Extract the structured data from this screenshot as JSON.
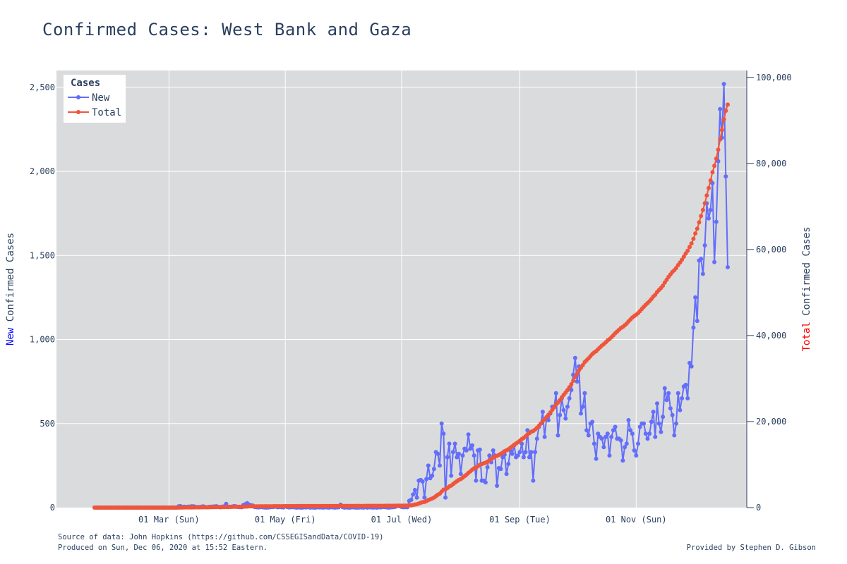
{
  "page": {
    "title": "Confirmed Cases: West Bank and Gaza",
    "footer_source": "Source of data: John Hopkins (https://github.com/CSSEGISandData/COVID-19)",
    "footer_produced": "Produced on Sun, Dec 06, 2020 at 15:52 Eastern.",
    "footer_credit": "Provided by Stephen D. Gibson"
  },
  "chart_data": {
    "type": "line",
    "title": "Confirmed Cases: West Bank and Gaza",
    "grid": true,
    "legend": {
      "title": "Cases",
      "placement": "top-left"
    },
    "colors": {
      "new": "#636efa",
      "total": "#ef553b",
      "plot_bg": "#dadbdd",
      "grid": "#ffffff",
      "text": "#2a3f5f"
    },
    "x_start": "2020-01-22",
    "xlim": [
      "2020-01-02",
      "2020-12-29"
    ],
    "x_ticks": [
      {
        "date": "2020-03-01",
        "label": "01 Mar (Sun)"
      },
      {
        "date": "2020-05-01",
        "label": "01 May (Fri)"
      },
      {
        "date": "2020-07-01",
        "label": "01 Jul (Wed)"
      },
      {
        "date": "2020-09-01",
        "label": "01 Sep (Tue)"
      },
      {
        "date": "2020-11-01",
        "label": "01 Nov (Sun)"
      }
    ],
    "y_left": {
      "label_prefix": "New",
      "label_rest": " Confirmed Cases",
      "ylim": [
        0,
        2600
      ],
      "ticks": [
        0,
        500,
        1000,
        1500,
        2000,
        2500
      ],
      "tick_labels": [
        "0",
        "500",
        "1,000",
        "1,500",
        "2,000",
        "2,500"
      ]
    },
    "y_right": {
      "label_prefix": "Total",
      "label_rest": " Confirmed Cases",
      "ylim": [
        0,
        101600
      ],
      "ticks": [
        0,
        20000,
        40000,
        60000,
        80000,
        100000
      ],
      "tick_labels": [
        "0",
        "20,000",
        "40,000",
        "60,000",
        "80,000",
        "100,000"
      ]
    },
    "series": [
      {
        "name": "New",
        "axis": "left",
        "values": [
          0,
          0,
          0,
          0,
          0,
          0,
          0,
          0,
          0,
          0,
          0,
          0,
          0,
          0,
          0,
          0,
          0,
          0,
          0,
          0,
          0,
          0,
          0,
          0,
          0,
          0,
          0,
          0,
          0,
          0,
          0,
          0,
          0,
          0,
          0,
          0,
          0,
          0,
          0,
          0,
          0,
          0,
          0,
          0,
          7,
          9,
          4,
          5,
          4,
          5,
          6,
          8,
          7,
          4,
          3,
          3,
          5,
          7,
          3,
          2,
          4,
          5,
          6,
          7,
          8,
          4,
          2,
          6,
          7,
          22,
          3,
          5,
          6,
          9,
          8,
          4,
          3,
          2,
          15,
          20,
          26,
          18,
          14,
          12,
          3,
          2,
          1,
          3,
          2,
          1,
          0,
          1,
          2,
          3,
          4,
          6,
          2,
          3,
          2,
          1,
          8,
          3,
          1,
          2,
          3,
          1,
          0,
          1,
          0,
          0,
          2,
          1,
          3,
          0,
          1,
          0,
          0,
          2,
          1,
          1,
          0,
          2,
          1,
          0,
          3,
          1,
          0,
          1,
          2,
          17,
          3,
          0,
          1,
          0,
          0,
          2,
          1,
          0,
          0,
          1,
          1,
          0,
          3,
          0,
          2,
          1,
          0,
          1,
          0,
          2,
          1,
          4,
          3,
          2,
          0,
          1,
          2,
          3,
          6,
          10,
          8,
          4,
          2,
          3,
          2,
          40,
          46,
          78,
          105,
          60,
          160,
          165,
          155,
          60,
          170,
          250,
          175,
          190,
          230,
          330,
          320,
          250,
          500,
          440,
          60,
          300,
          380,
          190,
          330,
          380,
          300,
          320,
          200,
          310,
          350,
          340,
          435,
          350,
          370,
          310,
          160,
          340,
          345,
          160,
          160,
          150,
          240,
          310,
          270,
          340,
          310,
          130,
          235,
          230,
          300,
          315,
          200,
          260,
          340,
          320,
          370,
          300,
          310,
          330,
          380,
          300,
          330,
          460,
          300,
          330,
          160,
          330,
          410,
          480,
          500,
          570,
          420,
          530,
          520,
          560,
          600,
          600,
          680,
          430,
          550,
          650,
          580,
          530,
          600,
          650,
          700,
          790,
          890,
          750,
          840,
          560,
          600,
          680,
          460,
          430,
          500,
          510,
          380,
          290,
          440,
          420,
          410,
          360,
          420,
          440,
          310,
          420,
          460,
          480,
          410,
          410,
          400,
          280,
          360,
          380,
          520,
          460,
          440,
          340,
          310,
          380,
          480,
          500,
          500,
          440,
          410,
          440,
          510,
          570,
          420,
          620,
          500,
          450,
          540,
          710,
          640,
          680,
          590,
          550,
          430,
          500,
          680,
          580,
          650,
          720,
          730,
          650,
          860,
          840,
          1070,
          1250,
          1110,
          1470,
          1480,
          1390,
          1560,
          1810,
          1720,
          1770,
          1930,
          1460,
          1700,
          2060,
          2370,
          2200,
          2520,
          1970,
          1430
        ]
      },
      {
        "name": "Total",
        "axis": "right",
        "values": [
          0,
          0,
          0,
          0,
          0,
          0,
          0,
          0,
          0,
          0,
          0,
          0,
          0,
          0,
          0,
          0,
          0,
          0,
          0,
          0,
          0,
          0,
          0,
          0,
          0,
          0,
          0,
          0,
          0,
          0,
          0,
          0,
          0,
          0,
          0,
          0,
          0,
          0,
          0,
          0,
          0,
          0,
          0,
          0,
          7,
          16,
          20,
          25,
          29,
          34,
          40,
          48,
          55,
          59,
          62,
          65,
          70,
          77,
          80,
          82,
          86,
          91,
          97,
          104,
          112,
          116,
          118,
          124,
          131,
          153,
          156,
          161,
          167,
          176,
          184,
          188,
          191,
          193,
          208,
          228,
          254,
          272,
          286,
          298,
          301,
          303,
          304,
          307,
          309,
          310,
          310,
          311,
          313,
          316,
          320,
          326,
          328,
          331,
          333,
          334,
          342,
          345,
          346,
          348,
          351,
          352,
          352,
          353,
          353,
          353,
          355,
          356,
          359,
          359,
          360,
          360,
          360,
          362,
          363,
          364,
          364,
          366,
          367,
          367,
          370,
          371,
          371,
          372,
          374,
          391,
          394,
          394,
          395,
          395,
          395,
          397,
          398,
          398,
          398,
          399,
          400,
          400,
          403,
          403,
          405,
          406,
          406,
          407,
          407,
          409,
          410,
          414,
          417,
          419,
          419,
          420,
          422,
          425,
          431,
          441,
          449,
          453,
          455,
          458,
          460,
          500,
          546,
          624,
          729,
          789,
          949,
          1114,
          1269,
          1329,
          1499,
          1749,
          1924,
          2114,
          2344,
          2674,
          2994,
          3244,
          3744,
          4184,
          4244,
          4544,
          4924,
          5114,
          5444,
          5824,
          6124,
          6444,
          6644,
          6954,
          7304,
          7644,
          8079,
          8429,
          8799,
          9109,
          9269,
          9609,
          9954,
          10114,
          10274,
          10424,
          10664,
          10974,
          11244,
          11584,
          11894,
          12024,
          12259,
          12489,
          12789,
          13104,
          13304,
          13564,
          13904,
          14224,
          14594,
          14894,
          15204,
          15534,
          15914,
          16214,
          16544,
          17004,
          17304,
          17634,
          17794,
          18124,
          18534,
          19014,
          19514,
          20084,
          20504,
          21034,
          21554,
          22114,
          22714,
          23314,
          23994,
          24424,
          24974,
          25624,
          26204,
          26734,
          27334,
          27984,
          28684,
          29474,
          30364,
          31114,
          31954,
          32514,
          33114,
          33794,
          34254,
          34684,
          35184,
          35694,
          36074,
          36364,
          36804,
          37224,
          37634,
          37994,
          38414,
          38854,
          39164,
          39584,
          40044,
          40524,
          40934,
          41344,
          41744,
          42024,
          42384,
          42764,
          43284,
          43744,
          44184,
          44524,
          44834,
          45214,
          45694,
          46194,
          46694,
          47134,
          47544,
          47984,
          48494,
          49064,
          49484,
          50104,
          50604,
          51054,
          51594,
          52304,
          52944,
          53624,
          54214,
          54764,
          55194,
          55694,
          56374,
          56954,
          57604,
          58324,
          59054,
          59704,
          60564,
          61404,
          62474,
          63724,
          64834,
          66304,
          67784,
          69174,
          70734,
          72544,
          74264,
          76034,
          77964,
          79424,
          81124,
          83184,
          85554,
          87754,
          90274,
          92244,
          93674
        ]
      }
    ]
  }
}
